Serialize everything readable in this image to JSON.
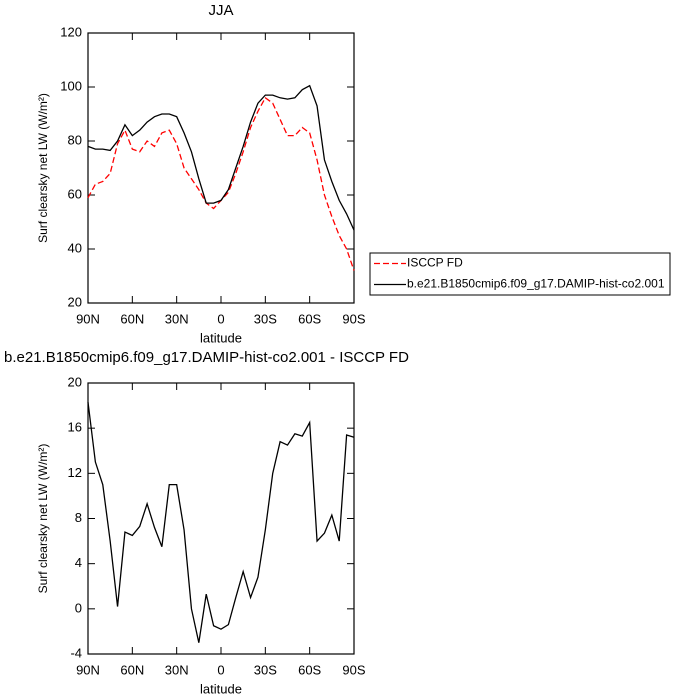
{
  "chart_data": [
    {
      "type": "line",
      "title": "JJA",
      "x_label": "latitude",
      "y_label": "Surf clearsky net LW (W/m²)",
      "x": [
        90,
        85,
        80,
        75,
        70,
        65,
        60,
        55,
        50,
        45,
        40,
        35,
        30,
        25,
        20,
        15,
        10,
        5,
        0,
        -5,
        -10,
        -15,
        -20,
        -25,
        -30,
        -35,
        -40,
        -45,
        -50,
        -55,
        -60,
        -65,
        -70,
        -75,
        -80,
        -85,
        -90
      ],
      "series": [
        {
          "name": "ISCCP FD",
          "color": "#ff0000",
          "line_style": "dashed",
          "values": [
            59,
            64,
            65,
            68,
            79,
            84,
            77,
            76,
            80,
            78,
            83,
            84,
            79,
            70,
            66,
            62,
            57,
            55,
            58,
            61,
            68,
            76,
            85,
            91,
            96,
            94,
            88,
            82,
            82,
            85,
            83,
            73,
            60,
            52,
            45,
            40,
            32
          ]
        },
        {
          "name": "b.e21.B1850cmip6.f09_g17.DAMIP-hist-co2.001",
          "color": "#000000",
          "line_style": "solid",
          "values": [
            78,
            77,
            77,
            76.5,
            80,
            86,
            82,
            84,
            87,
            89,
            90,
            90,
            89,
            83,
            76,
            66,
            57,
            57,
            58,
            62,
            70,
            78,
            87,
            94,
            97,
            97,
            96,
            95.5,
            96,
            99,
            100.5,
            93,
            73,
            65,
            58,
            53,
            47
          ]
        }
      ],
      "xlim": [
        90,
        -90
      ],
      "xticks": [
        {
          "value": 90,
          "label": "90N"
        },
        {
          "value": 60,
          "label": "60N"
        },
        {
          "value": 30,
          "label": "30N"
        },
        0,
        {
          "value": -30,
          "label": "30S"
        },
        {
          "value": -60,
          "label": "60S"
        },
        {
          "value": -90,
          "label": "90S"
        }
      ],
      "ylim": [
        20,
        120
      ],
      "yticks": [
        20,
        40,
        60,
        80,
        100,
        120
      ]
    },
    {
      "type": "line",
      "title": "b.e21.B1850cmip6.f09_g17.DAMIP-hist-co2.001 - ISCCP FD",
      "x_label": "latitude",
      "y_label": "Surf clearsky net LW (W/m²)",
      "x": [
        90,
        85,
        80,
        75,
        70,
        65,
        60,
        55,
        50,
        45,
        40,
        35,
        30,
        25,
        20,
        15,
        10,
        5,
        0,
        -5,
        -10,
        -15,
        -20,
        -25,
        -30,
        -35,
        -40,
        -45,
        -50,
        -55,
        -60,
        -65,
        -70,
        -75,
        -80,
        -85,
        -90
      ],
      "values": [
        18.3,
        13,
        11,
        6,
        0.2,
        6.8,
        6.5,
        7.3,
        9.3,
        7.2,
        5.5,
        11,
        11,
        7,
        0,
        -3,
        1.3,
        -1.5,
        -1.8,
        -1.4,
        1,
        3.3,
        1,
        2.8,
        7,
        12,
        14.8,
        14.5,
        15.5,
        15.3,
        16.5,
        6,
        6.7,
        8.3,
        6,
        15.4,
        15.2
      ],
      "color": "#000000",
      "xlim": [
        90,
        -90
      ],
      "xticks": [
        {
          "value": 90,
          "label": "90N"
        },
        {
          "value": 60,
          "label": "60N"
        },
        {
          "value": 30,
          "label": "30N"
        },
        0,
        {
          "value": -30,
          "label": "30S"
        },
        {
          "value": -60,
          "label": "60S"
        },
        {
          "value": -90,
          "label": "90S"
        }
      ],
      "ylim": [
        -4,
        20
      ],
      "yticks": [
        -4,
        0,
        4,
        8,
        12,
        16,
        20
      ]
    }
  ]
}
